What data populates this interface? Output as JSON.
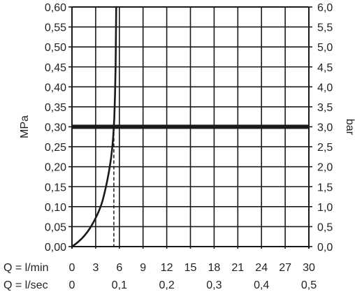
{
  "chart_data": {
    "type": "line",
    "left_axis": {
      "label": "MPa",
      "ylim": [
        0,
        0.6
      ],
      "ticks": [
        "0,00",
        "0,05",
        "0,10",
        "0,15",
        "0,20",
        "0,25",
        "0,30",
        "0,35",
        "0,40",
        "0,45",
        "0,50",
        "0,55",
        "0,60"
      ]
    },
    "right_axis": {
      "label": "bar",
      "ylim": [
        0,
        6
      ],
      "ticks": [
        "0,0",
        "0,5",
        "1,0",
        "1,5",
        "2,0",
        "2,5",
        "3,0",
        "3,5",
        "4,0",
        "4,5",
        "5,0",
        "5,5",
        "6,0"
      ]
    },
    "x_axis_lmin": {
      "label": "Q = l/min",
      "xlim": [
        0,
        30
      ],
      "ticks": [
        "0",
        "3",
        "6",
        "9",
        "12",
        "15",
        "18",
        "21",
        "24",
        "27",
        "30"
      ]
    },
    "x_axis_lsec": {
      "label": "Q = l/sec",
      "ticks": [
        {
          "value": 0,
          "text": "0"
        },
        {
          "value": 0.1,
          "text": "0,1"
        },
        {
          "value": 0.2,
          "text": "0,2"
        },
        {
          "value": 0.3,
          "text": "0,3"
        },
        {
          "value": 0.4,
          "text": "0,4"
        },
        {
          "value": 0.5,
          "text": "0,5"
        }
      ]
    },
    "grid": true,
    "curve": {
      "x": [
        0,
        0.8,
        1.6,
        2.4,
        3.2,
        3.8,
        4.3,
        4.7,
        5.0,
        5.2,
        5.35,
        5.45,
        5.52,
        5.57,
        5.6
      ],
      "y": [
        0,
        0.012,
        0.028,
        0.05,
        0.08,
        0.11,
        0.15,
        0.19,
        0.23,
        0.27,
        0.32,
        0.38,
        0.45,
        0.53,
        0.6
      ]
    },
    "reference_line_y": 0.3,
    "flow_at_reference": 5.3,
    "colors": {
      "line": "#1a1a1a",
      "grid": "#1a1a1a",
      "text": "#222222"
    }
  }
}
